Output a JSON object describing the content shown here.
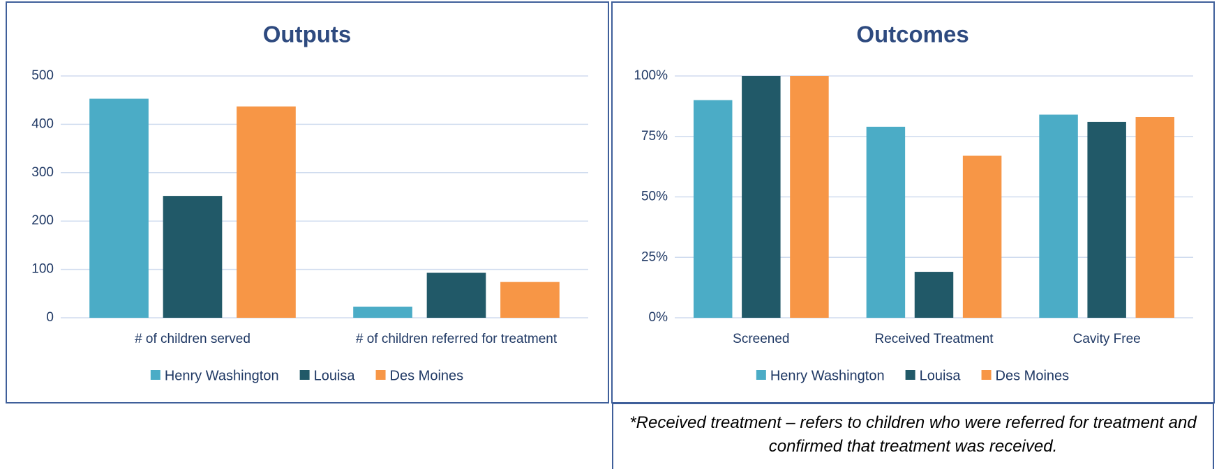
{
  "chart_data": [
    {
      "type": "bar",
      "title": "Outputs",
      "categories": [
        "# of children served",
        "# of children referred for treatment"
      ],
      "series": [
        {
          "name": "Henry Washington",
          "color": "#4bacc6",
          "values": [
            453,
            23
          ]
        },
        {
          "name": "Louisa",
          "color": "#215968",
          "values": [
            252,
            93
          ]
        },
        {
          "name": "Des Moines",
          "color": "#f79646",
          "values": [
            437,
            74
          ]
        }
      ],
      "ylim": [
        0,
        500
      ],
      "yticks": [
        0,
        100,
        200,
        300,
        400,
        500
      ],
      "grid": true,
      "legend": "bottom"
    },
    {
      "type": "bar",
      "title": "Outcomes",
      "categories": [
        "Screened",
        "Received Treatment",
        "Cavity Free"
      ],
      "series": [
        {
          "name": "Henry Washington",
          "color": "#4bacc6",
          "values": [
            90,
            79,
            84
          ]
        },
        {
          "name": "Louisa",
          "color": "#215968",
          "values": [
            100,
            19,
            81
          ]
        },
        {
          "name": "Des Moines",
          "color": "#f79646",
          "values": [
            100,
            67,
            83
          ]
        }
      ],
      "ylim": [
        0,
        100
      ],
      "yticks": [
        {
          "value": 0,
          "label": "0%"
        },
        {
          "value": 25,
          "label": "25%"
        },
        {
          "value": 50,
          "label": "50%"
        },
        {
          "value": 75,
          "label": "75%"
        },
        {
          "value": 100,
          "label": "100%"
        }
      ],
      "grid": true,
      "legend": "bottom"
    }
  ],
  "note": "*Received treatment – refers to children who were referred for treatment and confirmed that treatment was received."
}
